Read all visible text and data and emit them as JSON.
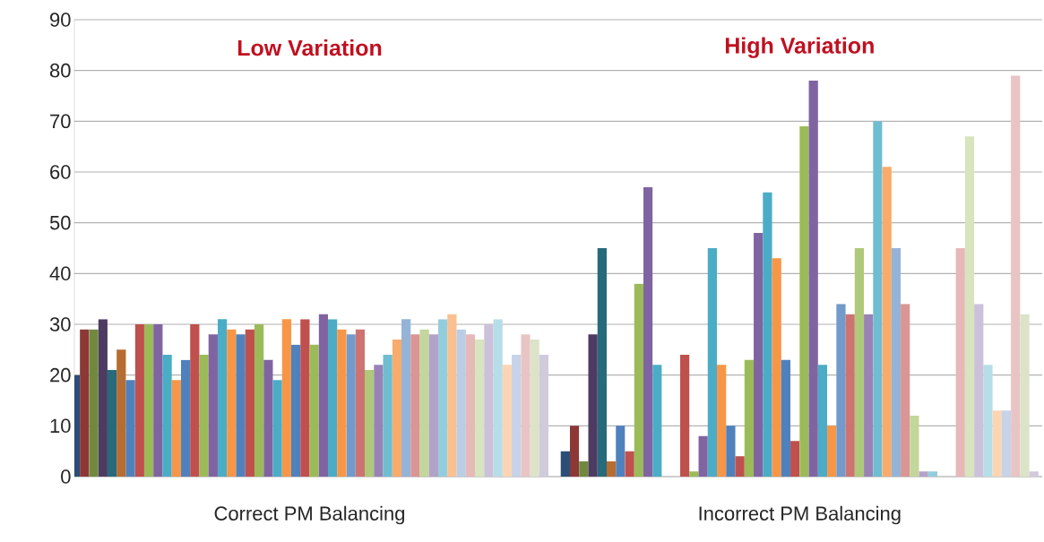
{
  "chart_data": {
    "type": "bar",
    "categories": [
      "Correct PM Balancing",
      "Incorrect PM Balancing"
    ],
    "annotations": [
      "Low Variation",
      "High Variation"
    ],
    "ylim": [
      0,
      90
    ],
    "yticks": [
      0,
      10,
      20,
      30,
      40,
      50,
      60,
      70,
      80,
      90
    ],
    "grid": "y",
    "series": [
      {
        "color": "#2C4D75",
        "values": [
          20,
          5
        ]
      },
      {
        "color": "#8C3836",
        "values": [
          29,
          10
        ]
      },
      {
        "color": "#71893F",
        "values": [
          29,
          3
        ]
      },
      {
        "color": "#4D3B62",
        "values": [
          31,
          28
        ]
      },
      {
        "color": "#276A7C",
        "values": [
          21,
          45
        ]
      },
      {
        "color": "#B66D31",
        "values": [
          25,
          3
        ]
      },
      {
        "color": "#4F81BD",
        "values": [
          19,
          10
        ]
      },
      {
        "color": "#C0504D",
        "values": [
          30,
          5
        ]
      },
      {
        "color": "#9BBB59",
        "values": [
          30,
          38
        ]
      },
      {
        "color": "#8064A2",
        "values": [
          30,
          57
        ]
      },
      {
        "color": "#4BACC6",
        "values": [
          24,
          22
        ]
      },
      {
        "color": "#F79646",
        "values": [
          19,
          0
        ]
      },
      {
        "color": "#4F81BD",
        "values": [
          23,
          0
        ]
      },
      {
        "color": "#C0504D",
        "values": [
          30,
          24
        ]
      },
      {
        "color": "#9BBB59",
        "values": [
          24,
          1
        ]
      },
      {
        "color": "#8064A2",
        "values": [
          28,
          8
        ]
      },
      {
        "color": "#4BACC6",
        "values": [
          31,
          45
        ]
      },
      {
        "color": "#F79646",
        "values": [
          29,
          22
        ]
      },
      {
        "color": "#4F81BD",
        "values": [
          28,
          10
        ]
      },
      {
        "color": "#C0504D",
        "values": [
          29,
          4
        ]
      },
      {
        "color": "#9BBB59",
        "values": [
          30,
          23
        ]
      },
      {
        "color": "#8064A2",
        "values": [
          23,
          48
        ]
      },
      {
        "color": "#4BACC6",
        "values": [
          19,
          56
        ]
      },
      {
        "color": "#F79646",
        "values": [
          31,
          43
        ]
      },
      {
        "color": "#4F81BD",
        "values": [
          26,
          23
        ]
      },
      {
        "color": "#C0504D",
        "values": [
          31,
          7
        ]
      },
      {
        "color": "#9BBB59",
        "values": [
          26,
          69
        ]
      },
      {
        "color": "#8064A2",
        "values": [
          32,
          78
        ]
      },
      {
        "color": "#4BACC6",
        "values": [
          31,
          22
        ]
      },
      {
        "color": "#F79646",
        "values": [
          29,
          10
        ]
      },
      {
        "color": "#729ACA",
        "values": [
          28,
          34
        ]
      },
      {
        "color": "#CD7371",
        "values": [
          29,
          32
        ]
      },
      {
        "color": "#AFC97A",
        "values": [
          21,
          45
        ]
      },
      {
        "color": "#9983B5",
        "values": [
          22,
          32
        ]
      },
      {
        "color": "#6FBDD1",
        "values": [
          24,
          70
        ]
      },
      {
        "color": "#F9AB6B",
        "values": [
          27,
          61
        ]
      },
      {
        "color": "#95B3D7",
        "values": [
          31,
          45
        ]
      },
      {
        "color": "#D99694",
        "values": [
          28,
          34
        ]
      },
      {
        "color": "#C3D69B",
        "values": [
          29,
          12
        ]
      },
      {
        "color": "#B3A2C7",
        "values": [
          28,
          1
        ]
      },
      {
        "color": "#93CDDD",
        "values": [
          31,
          1
        ]
      },
      {
        "color": "#FAC090",
        "values": [
          32,
          0
        ]
      },
      {
        "color": "#B9CDE5",
        "values": [
          29,
          0
        ]
      },
      {
        "color": "#E6B9B8",
        "values": [
          28,
          45
        ]
      },
      {
        "color": "#D7E4BD",
        "values": [
          27,
          67
        ]
      },
      {
        "color": "#CCC1DA",
        "values": [
          30,
          34
        ]
      },
      {
        "color": "#B7DEE8",
        "values": [
          31,
          22
        ]
      },
      {
        "color": "#FCD5B5",
        "values": [
          22,
          13
        ]
      },
      {
        "color": "#C6D3E8",
        "values": [
          24,
          13
        ]
      },
      {
        "color": "#E8C4C4",
        "values": [
          28,
          79
        ]
      },
      {
        "color": "#DCE3C8",
        "values": [
          27,
          32
        ]
      },
      {
        "color": "#D0CADC",
        "values": [
          24,
          1
        ]
      }
    ]
  }
}
